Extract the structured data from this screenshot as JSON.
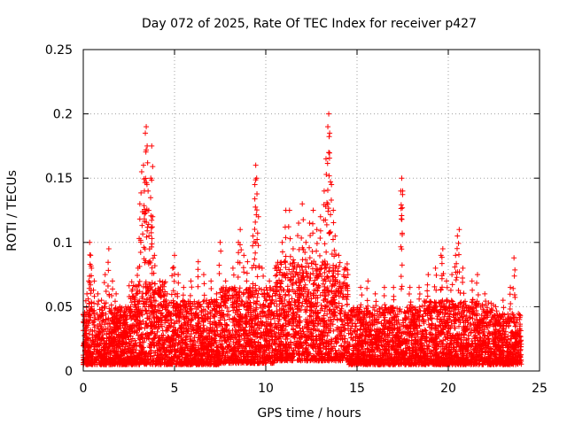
{
  "chart_data": {
    "type": "scatter",
    "title": "Day 072 of 2025, Rate Of TEC Index for receiver p427",
    "xlabel": "GPS time / hours",
    "ylabel": "ROTI / TECUs",
    "xlim": [
      0,
      25
    ],
    "ylim": [
      0,
      0.25
    ],
    "xticks": [
      0,
      5,
      10,
      15,
      20,
      25
    ],
    "xtick_labels": [
      "0",
      "5",
      "10",
      "15",
      "20",
      "25"
    ],
    "yticks": [
      0,
      0.05,
      0.1,
      0.15,
      0.2,
      0.25
    ],
    "ytick_labels": [
      "0",
      "0.05",
      "0.1",
      "0.15",
      "0.2",
      "0.25"
    ],
    "grid": true,
    "marker": "+",
    "color": "#ff0000",
    "series": [
      {
        "name": "ROTI",
        "points": [
          [
            0.1,
            0.035
          ],
          [
            0.2,
            0.06
          ],
          [
            0.3,
            0.07
          ],
          [
            0.35,
            0.1
          ],
          [
            0.4,
            0.09
          ],
          [
            0.45,
            0.08
          ],
          [
            0.6,
            0.07
          ],
          [
            0.8,
            0.06
          ],
          [
            1.0,
            0.055
          ],
          [
            1.2,
            0.075
          ],
          [
            1.4,
            0.095
          ],
          [
            1.6,
            0.07
          ],
          [
            1.8,
            0.06
          ],
          [
            2.0,
            0.05
          ],
          [
            2.3,
            0.045
          ],
          [
            2.6,
            0.05
          ],
          [
            2.9,
            0.06
          ],
          [
            3.0,
            0.08
          ],
          [
            3.1,
            0.13
          ],
          [
            3.2,
            0.155
          ],
          [
            3.3,
            0.16
          ],
          [
            3.35,
            0.14
          ],
          [
            3.4,
            0.185
          ],
          [
            3.45,
            0.19
          ],
          [
            3.5,
            0.175
          ],
          [
            3.55,
            0.14
          ],
          [
            3.6,
            0.105
          ],
          [
            3.7,
            0.15
          ],
          [
            3.75,
            0.175
          ],
          [
            3.8,
            0.12
          ],
          [
            3.9,
            0.09
          ],
          [
            4.2,
            0.07
          ],
          [
            4.6,
            0.06
          ],
          [
            4.9,
            0.08
          ],
          [
            5.0,
            0.09
          ],
          [
            5.2,
            0.075
          ],
          [
            5.5,
            0.065
          ],
          [
            5.9,
            0.07
          ],
          [
            6.3,
            0.085
          ],
          [
            6.6,
            0.075
          ],
          [
            7.0,
            0.07
          ],
          [
            7.3,
            0.06
          ],
          [
            7.5,
            0.1
          ],
          [
            7.8,
            0.07
          ],
          [
            8.2,
            0.08
          ],
          [
            8.5,
            0.1
          ],
          [
            8.6,
            0.11
          ],
          [
            8.8,
            0.09
          ],
          [
            9.0,
            0.085
          ],
          [
            9.3,
            0.105
          ],
          [
            9.4,
            0.145
          ],
          [
            9.45,
            0.16
          ],
          [
            9.5,
            0.15
          ],
          [
            9.6,
            0.12
          ],
          [
            9.8,
            0.08
          ],
          [
            10.2,
            0.07
          ],
          [
            10.6,
            0.075
          ],
          [
            10.9,
            0.1
          ],
          [
            11.1,
            0.125
          ],
          [
            11.3,
            0.125
          ],
          [
            11.5,
            0.095
          ],
          [
            11.8,
            0.115
          ],
          [
            12.0,
            0.13
          ],
          [
            12.2,
            0.1
          ],
          [
            12.4,
            0.115
          ],
          [
            12.6,
            0.125
          ],
          [
            12.8,
            0.11
          ],
          [
            13.0,
            0.12
          ],
          [
            13.2,
            0.14
          ],
          [
            13.3,
            0.165
          ],
          [
            13.4,
            0.19
          ],
          [
            13.45,
            0.2
          ],
          [
            13.5,
            0.185
          ],
          [
            13.6,
            0.145
          ],
          [
            13.7,
            0.125
          ],
          [
            13.8,
            0.105
          ],
          [
            14.0,
            0.09
          ],
          [
            14.5,
            0.075
          ],
          [
            15.2,
            0.065
          ],
          [
            15.6,
            0.07
          ],
          [
            16.0,
            0.06
          ],
          [
            16.5,
            0.065
          ],
          [
            17.0,
            0.065
          ],
          [
            17.4,
            0.14
          ],
          [
            17.45,
            0.15
          ],
          [
            17.5,
            0.14
          ],
          [
            17.9,
            0.065
          ],
          [
            18.4,
            0.065
          ],
          [
            18.9,
            0.075
          ],
          [
            19.3,
            0.08
          ],
          [
            19.6,
            0.09
          ],
          [
            19.7,
            0.095
          ],
          [
            19.9,
            0.07
          ],
          [
            20.2,
            0.075
          ],
          [
            20.4,
            0.09
          ],
          [
            20.5,
            0.105
          ],
          [
            20.6,
            0.11
          ],
          [
            20.8,
            0.08
          ],
          [
            21.3,
            0.07
          ],
          [
            21.6,
            0.075
          ],
          [
            22.0,
            0.06
          ],
          [
            22.6,
            0.05
          ],
          [
            23.0,
            0.055
          ],
          [
            23.4,
            0.065
          ],
          [
            23.6,
            0.088
          ],
          [
            23.9,
            0.04
          ]
        ],
        "baseline_band": [
          {
            "x_from": 0,
            "x_to": 2.5,
            "low": 0.005,
            "high": 0.05
          },
          {
            "x_from": 2.5,
            "x_to": 4.5,
            "low": 0.005,
            "high": 0.07
          },
          {
            "x_from": 4.5,
            "x_to": 7.5,
            "low": 0.005,
            "high": 0.055
          },
          {
            "x_from": 7.5,
            "x_to": 10.5,
            "low": 0.006,
            "high": 0.065
          },
          {
            "x_from": 10.5,
            "x_to": 14.5,
            "low": 0.008,
            "high": 0.085
          },
          {
            "x_from": 14.5,
            "x_to": 18.5,
            "low": 0.005,
            "high": 0.05
          },
          {
            "x_from": 18.5,
            "x_to": 22.5,
            "low": 0.005,
            "high": 0.055
          },
          {
            "x_from": 22.5,
            "x_to": 24.0,
            "low": 0.005,
            "high": 0.045
          }
        ]
      }
    ]
  }
}
